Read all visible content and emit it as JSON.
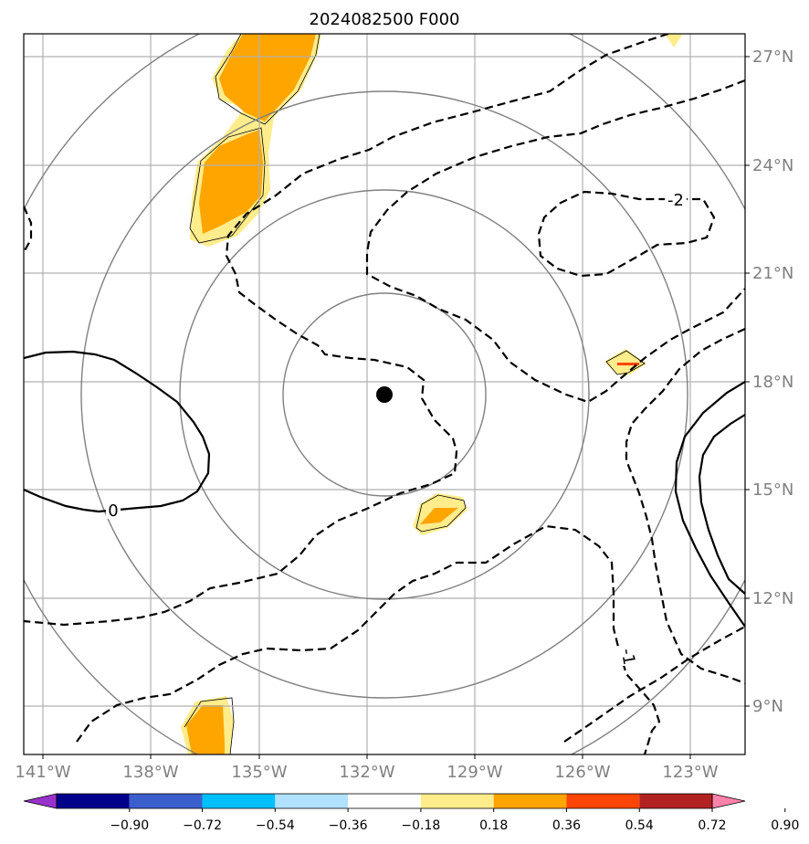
{
  "title": "2024082500 F000",
  "axes": {
    "lon_ticks": [
      "141°W",
      "138°W",
      "135°W",
      "132°W",
      "129°W",
      "126°W",
      "123°W"
    ],
    "lat_ticks": [
      "27°N",
      "24°N",
      "21°N",
      "18°N",
      "15°N",
      "12°N",
      "9°N"
    ]
  },
  "contour_labels": [
    "0",
    "-2",
    "-1"
  ],
  "storm_center": {
    "lon": -131.5,
    "lat": 17.6
  },
  "colorbar": {
    "ticks": [
      "−0.90",
      "−0.72",
      "−0.54",
      "−0.36",
      "−0.18",
      "0.18",
      "0.36",
      "0.54",
      "0.72",
      "0.90"
    ],
    "colors": [
      "#9932cc",
      "#00008b",
      "#3a5fcd",
      "#00bfff",
      "#b0e2ff",
      "#ffffff",
      "#ffec8b",
      "#ffa500",
      "#ff4500",
      "#b22222",
      "#ff82ab"
    ]
  },
  "colors": {
    "shade_light": "#ffec8b",
    "shade_mid": "#ffa500",
    "shade_dark": "#ff4500",
    "grid": "#b0b0b0",
    "range_rings": "#808080"
  }
}
